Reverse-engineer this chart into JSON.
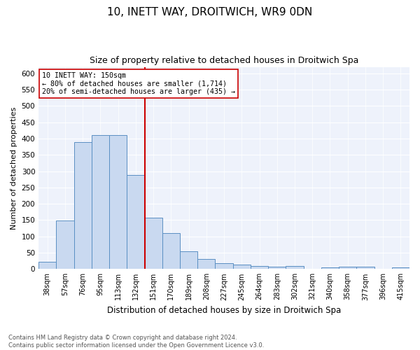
{
  "title": "10, INETT WAY, DROITWICH, WR9 0DN",
  "subtitle": "Size of property relative to detached houses in Droitwich Spa",
  "xlabel": "Distribution of detached houses by size in Droitwich Spa",
  "ylabel": "Number of detached properties",
  "bar_labels": [
    "38sqm",
    "57sqm",
    "76sqm",
    "95sqm",
    "113sqm",
    "132sqm",
    "151sqm",
    "170sqm",
    "189sqm",
    "208sqm",
    "227sqm",
    "245sqm",
    "264sqm",
    "283sqm",
    "302sqm",
    "321sqm",
    "340sqm",
    "358sqm",
    "377sqm",
    "396sqm",
    "415sqm"
  ],
  "bar_values": [
    23,
    148,
    390,
    410,
    410,
    289,
    158,
    110,
    54,
    30,
    17,
    13,
    10,
    8,
    10,
    0,
    5,
    7,
    8,
    0,
    5
  ],
  "bar_color": "#c9d9f0",
  "bar_edge_color": "#5a8fc3",
  "annotation_text_line1": "10 INETT WAY: 150sqm",
  "annotation_text_line2": "← 80% of detached houses are smaller (1,714)",
  "annotation_text_line3": "20% of semi-detached houses are larger (435) →",
  "annotation_box_color": "#ffffff",
  "annotation_box_edge": "#cc0000",
  "vline_color": "#cc0000",
  "vline_x_index": 6,
  "ylim": [
    0,
    620
  ],
  "yticks": [
    0,
    50,
    100,
    150,
    200,
    250,
    300,
    350,
    400,
    450,
    500,
    550,
    600
  ],
  "footnote": "Contains HM Land Registry data © Crown copyright and database right 2024.\nContains public sector information licensed under the Open Government Licence v3.0.",
  "bg_color": "#eef2fb",
  "title_fontsize": 11,
  "subtitle_fontsize": 9,
  "ylabel_fontsize": 8,
  "xlabel_fontsize": 8.5
}
